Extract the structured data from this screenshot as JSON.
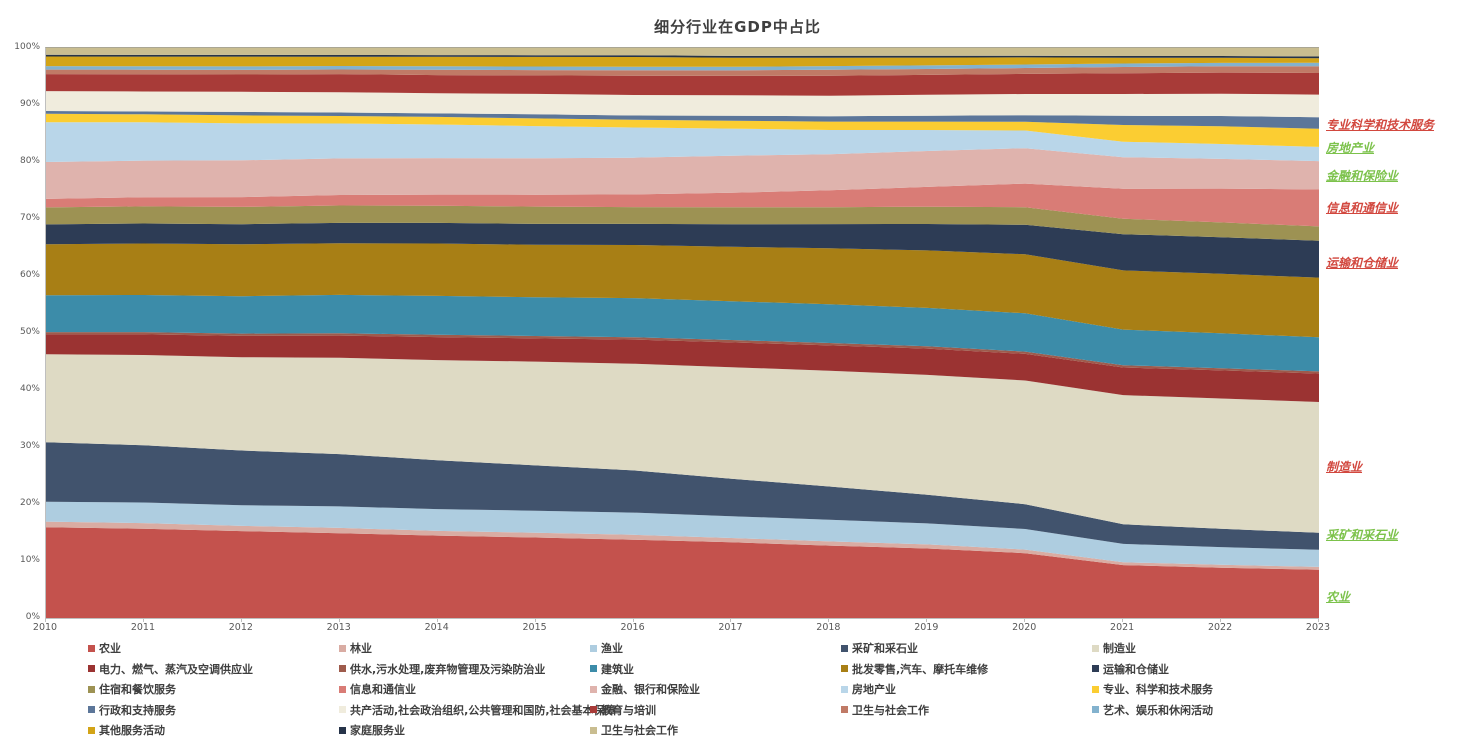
{
  "page": {
    "background": "#ffffff"
  },
  "chart_data": {
    "type": "area",
    "stacked": true,
    "percent_stacked": true,
    "title": "细分行业在GDP中占比",
    "xlabel": "",
    "ylabel": "",
    "ylim": [
      0,
      100
    ],
    "grid": false,
    "legend_position": "bottom",
    "x": [
      2010,
      2011,
      2012,
      2013,
      2014,
      2015,
      2016,
      2017,
      2018,
      2019,
      2020,
      2021,
      2022,
      2023
    ],
    "y_tick_labels": [
      "0%",
      "10%",
      "20%",
      "30%",
      "40%",
      "50%",
      "60%",
      "70%",
      "80%",
      "90%",
      "100%"
    ],
    "series": [
      {
        "name": "农业",
        "color": "#c4524d",
        "values": [
          16.0,
          15.6,
          15.1,
          14.6,
          14.0,
          13.5,
          13.0,
          12.5,
          12.0,
          11.6,
          11.0,
          9.2,
          8.8,
          8.5
        ]
      },
      {
        "name": "林业",
        "color": "#d9aca3",
        "values": [
          1.0,
          1.0,
          0.9,
          0.9,
          0.8,
          0.8,
          0.8,
          0.7,
          0.7,
          0.7,
          0.6,
          0.5,
          0.5,
          0.5
        ]
      },
      {
        "name": "渔业",
        "color": "#aecde0",
        "values": [
          3.5,
          3.6,
          3.6,
          3.7,
          3.7,
          3.7,
          3.7,
          3.6,
          3.6,
          3.5,
          3.5,
          3.2,
          3.1,
          3.0
        ]
      },
      {
        "name": "采矿和采石业",
        "color": "#41536d",
        "values": [
          10.5,
          10.0,
          9.5,
          9.0,
          8.3,
          7.6,
          7.0,
          6.2,
          5.5,
          4.8,
          4.2,
          3.4,
          3.2,
          3.0
        ]
      },
      {
        "name": "制造业",
        "color": "#dedac4",
        "values": [
          15.5,
          15.8,
          16.2,
          16.6,
          17.0,
          17.4,
          17.7,
          18.4,
          19.2,
          20.0,
          21.0,
          22.5,
          22.8,
          23.0
        ]
      },
      {
        "name": "电力、燃气、蒸汽及空调供应业",
        "color": "#9b3332",
        "values": [
          3.5,
          3.6,
          3.7,
          3.8,
          3.9,
          3.9,
          4.0,
          4.1,
          4.2,
          4.4,
          4.5,
          4.8,
          4.9,
          5.0
        ]
      },
      {
        "name": "供水,污水处理,废弃物管理及污染防治业",
        "color": "#9e5b4c",
        "values": [
          0.4,
          0.4,
          0.4,
          0.4,
          0.4,
          0.4,
          0.4,
          0.4,
          0.4,
          0.4,
          0.4,
          0.4,
          0.4,
          0.4
        ]
      },
      {
        "name": "建筑业",
        "color": "#3c8ca9",
        "values": [
          6.5,
          6.5,
          6.5,
          6.6,
          6.6,
          6.5,
          6.5,
          6.4,
          6.4,
          6.4,
          6.5,
          6.2,
          6.1,
          6.0
        ]
      },
      {
        "name": "批发零售,汽车、摩托车维修",
        "color": "#a87f15",
        "values": [
          9.0,
          9.0,
          9.0,
          8.9,
          8.9,
          8.8,
          8.8,
          9.0,
          9.3,
          9.6,
          10.0,
          10.3,
          10.4,
          10.5
        ]
      },
      {
        "name": "运输和仓储业",
        "color": "#2d3c55",
        "values": [
          3.5,
          3.5,
          3.5,
          3.5,
          3.5,
          3.5,
          3.5,
          3.7,
          4.0,
          4.4,
          5.0,
          6.3,
          6.4,
          6.5
        ]
      },
      {
        "name": "住宿和餐饮服务",
        "color": "#9d9253",
        "values": [
          3.0,
          3.0,
          3.0,
          3.0,
          2.9,
          2.9,
          2.8,
          2.8,
          2.8,
          2.9,
          3.0,
          2.7,
          2.6,
          2.5
        ]
      },
      {
        "name": "信息和通信业",
        "color": "#d97c76",
        "values": [
          1.5,
          1.6,
          1.7,
          1.8,
          1.9,
          2.0,
          2.1,
          2.4,
          2.8,
          3.3,
          4.0,
          5.2,
          5.9,
          6.5
        ]
      },
      {
        "name": "金融、银行和保险业",
        "color": "#dfb3ad",
        "values": [
          6.5,
          6.4,
          6.4,
          6.3,
          6.2,
          6.1,
          6.1,
          6.1,
          6.0,
          6.0,
          6.0,
          5.5,
          5.2,
          5.0
        ]
      },
      {
        "name": "房地产业",
        "color": "#b9d6e9",
        "values": [
          7.0,
          6.7,
          6.4,
          6.0,
          5.7,
          5.4,
          5.0,
          4.5,
          4.0,
          3.5,
          3.0,
          2.7,
          2.6,
          2.5
        ]
      },
      {
        "name": "专业、科学和技术服务",
        "color": "#fbcd32",
        "values": [
          1.5,
          1.4,
          1.4,
          1.3,
          1.3,
          1.3,
          1.3,
          1.3,
          1.4,
          1.4,
          1.5,
          2.9,
          3.1,
          3.2
        ]
      },
      {
        "name": "行政和支持服务",
        "color": "#5c7699",
        "values": [
          0.5,
          0.5,
          0.6,
          0.6,
          0.6,
          0.7,
          0.7,
          0.8,
          0.9,
          1.0,
          1.1,
          1.6,
          1.8,
          2.0
        ]
      },
      {
        "name": "共产活动,社会政治组织,公共管理和国防,社会基本保障",
        "color": "#f0ecdd",
        "values": [
          3.5,
          3.5,
          3.5,
          3.5,
          3.4,
          3.4,
          3.4,
          3.4,
          3.4,
          3.5,
          3.6,
          3.8,
          3.9,
          4.0
        ]
      },
      {
        "name": "教育与培训",
        "color": "#a83b38",
        "values": [
          3.0,
          3.0,
          3.0,
          3.1,
          3.1,
          3.1,
          3.2,
          3.2,
          3.3,
          3.3,
          3.4,
          3.6,
          3.7,
          3.8
        ]
      },
      {
        "name": "卫生与社会工作",
        "color": "#c07a66",
        "values": [
          0.8,
          0.8,
          0.8,
          0.8,
          0.9,
          0.9,
          0.9,
          0.9,
          1.0,
          1.0,
          1.0,
          1.1,
          1.1,
          1.2
        ]
      },
      {
        "name": "艺术、娱乐和休闲活动",
        "color": "#83b2ce",
        "values": [
          0.6,
          0.6,
          0.6,
          0.6,
          0.6,
          0.6,
          0.6,
          0.6,
          0.6,
          0.6,
          0.6,
          0.6,
          0.6,
          0.6
        ]
      },
      {
        "name": "其他服务活动",
        "color": "#d3a417",
        "values": [
          1.7,
          1.7,
          1.7,
          1.6,
          1.6,
          1.6,
          1.6,
          1.5,
          1.4,
          1.3,
          1.2,
          1.0,
          0.9,
          0.8
        ]
      },
      {
        "name": "家庭服务业",
        "color": "#263349",
        "values": [
          0.3,
          0.3,
          0.3,
          0.3,
          0.3,
          0.3,
          0.3,
          0.3,
          0.3,
          0.3,
          0.3,
          0.3,
          0.3,
          0.3
        ]
      },
      {
        "name": "卫生与社会工作",
        "color": "#c9bd90",
        "values": [
          1.2,
          1.2,
          1.2,
          1.2,
          1.2,
          1.2,
          1.2,
          1.3,
          1.3,
          1.3,
          1.3,
          1.4,
          1.4,
          1.5
        ]
      }
    ],
    "annotations": [
      {
        "text": "专业科学和技术服务",
        "color": "#d2473e",
        "y_pct": 86.5
      },
      {
        "text": "房地产业",
        "color": "#7cc24b",
        "y_pct": 82.5
      },
      {
        "text": "金融和保险业",
        "color": "#7cc24b",
        "y_pct": 77.5
      },
      {
        "text": "信息和通信业",
        "color": "#d2473e",
        "y_pct": 72.0
      },
      {
        "text": "运输和仓储业",
        "color": "#d2473e",
        "y_pct": 62.2
      },
      {
        "text": "制造业",
        "color": "#d2473e",
        "y_pct": 26.5
      },
      {
        "text": "采矿和采石业",
        "color": "#7cc24b",
        "y_pct": 14.5
      },
      {
        "text": "农业",
        "color": "#7cc24b",
        "y_pct": 3.6
      }
    ],
    "legend_columns": 5
  }
}
